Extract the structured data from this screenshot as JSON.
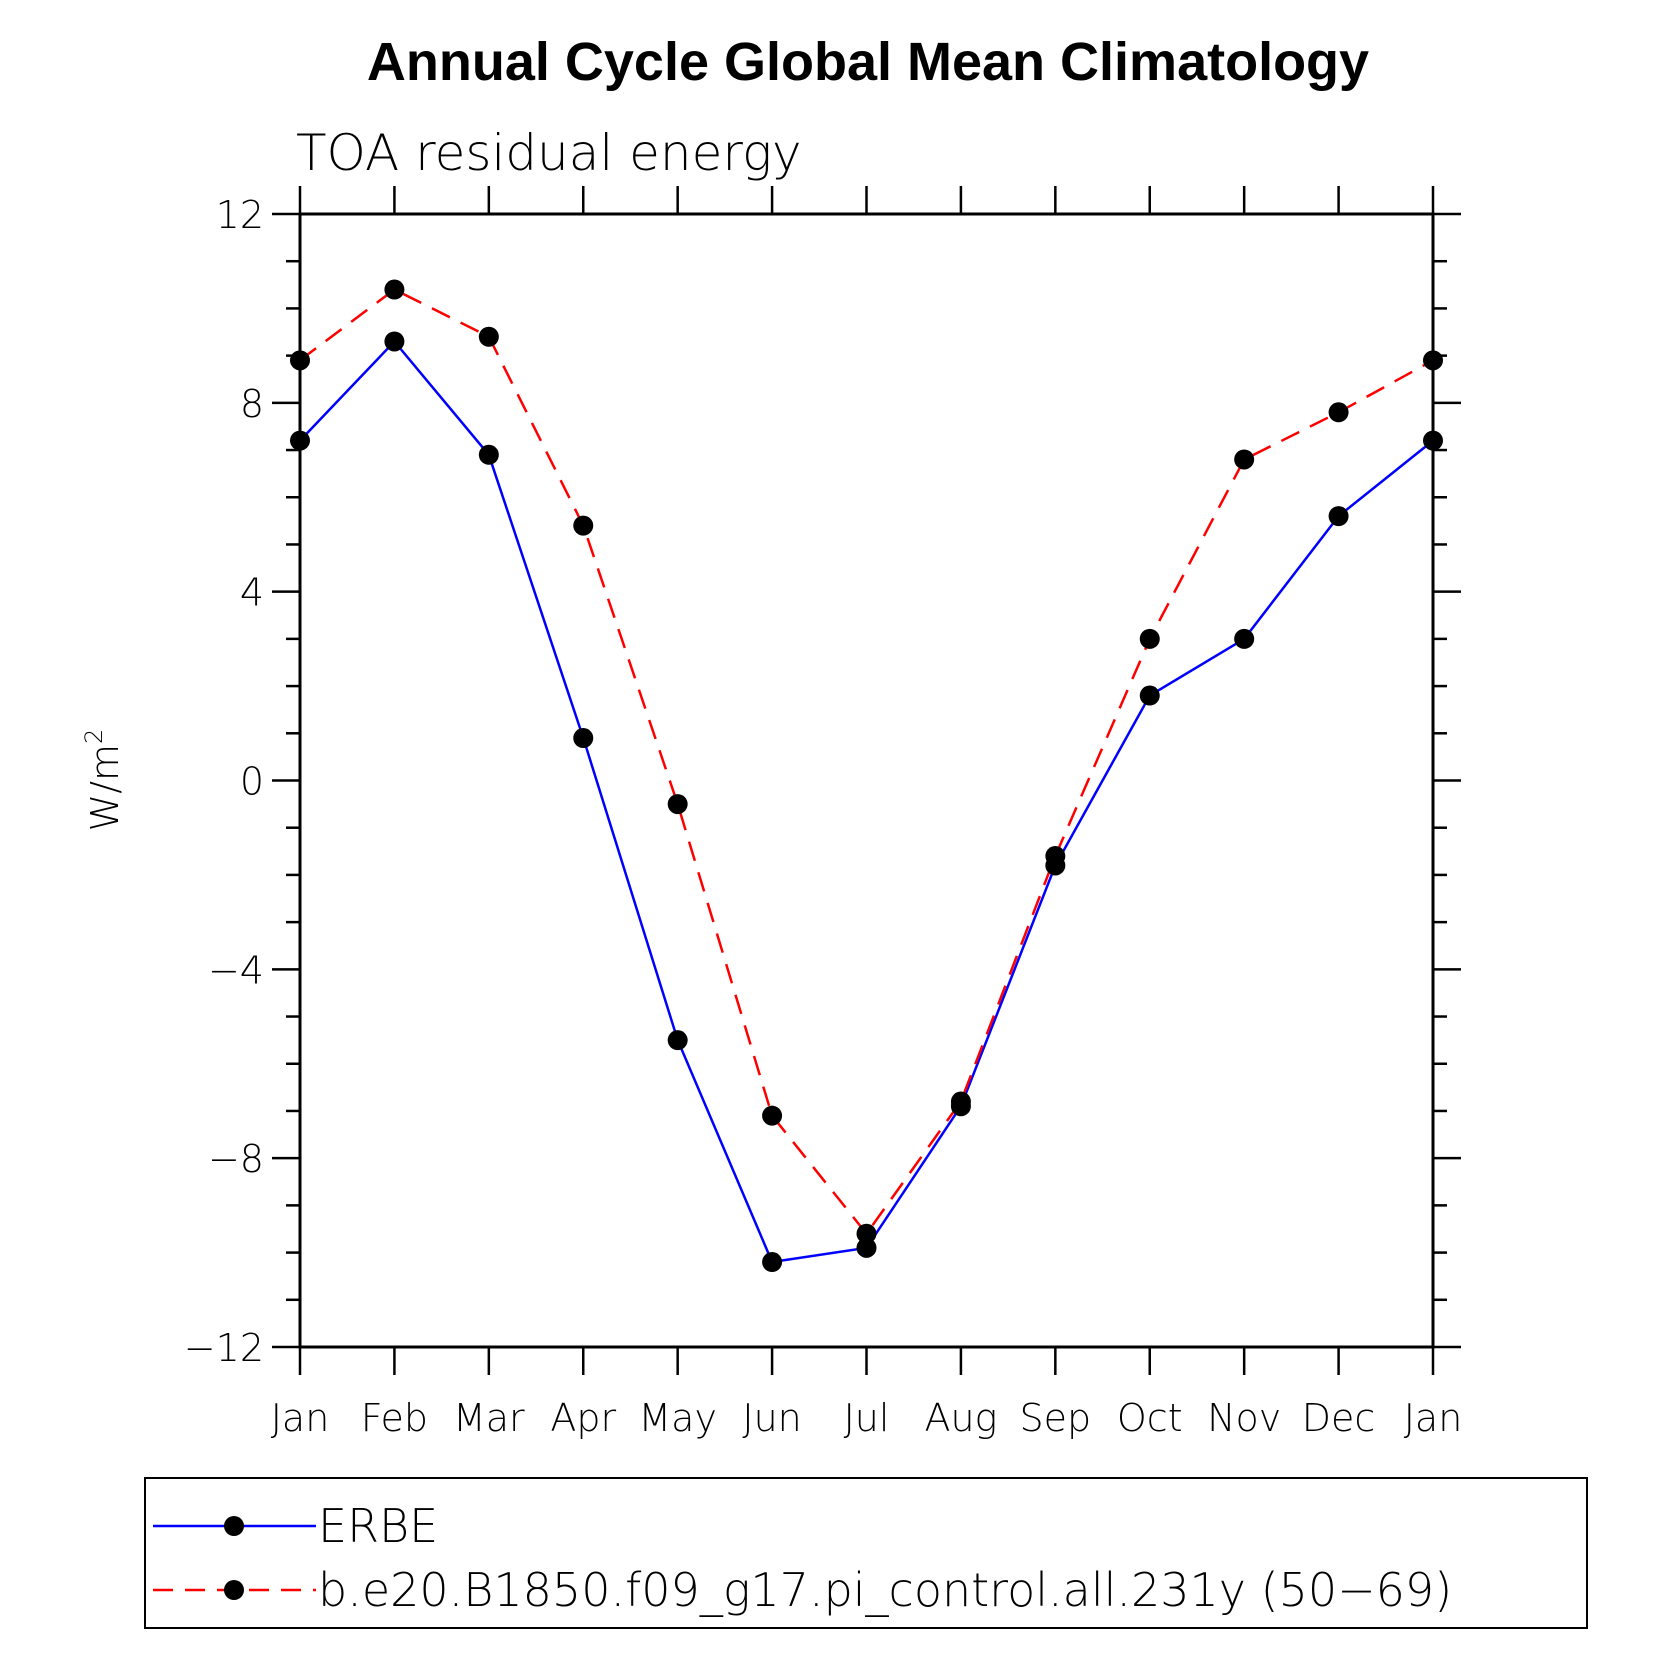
{
  "chart_data": {
    "type": "line",
    "title": "Annual Cycle Global Mean Climatology",
    "subtitle": "TOA residual energy",
    "ylabel_base": "W/m",
    "ylabel_sup": "2",
    "xlabel": "",
    "categories": [
      "Jan",
      "Feb",
      "Mar",
      "Apr",
      "May",
      "Jun",
      "Jul",
      "Aug",
      "Sep",
      "Oct",
      "Nov",
      "Dec",
      "Jan"
    ],
    "ylim": [
      -12,
      12
    ],
    "yticks": [
      -12,
      -8,
      -4,
      0,
      4,
      8,
      12
    ],
    "ytick_labels": [
      "−12",
      "−8",
      "−4",
      "0",
      "4",
      "8",
      "12"
    ],
    "series": [
      {
        "name": "ERBE",
        "color": "#0000ff",
        "style": "solid",
        "values": [
          7.2,
          9.3,
          6.9,
          0.9,
          -5.5,
          -10.2,
          -9.9,
          -6.9,
          -1.8,
          1.8,
          3.0,
          5.6,
          7.2
        ]
      },
      {
        "name": "b.e20.B1850.f09_g17.pi_control.all.231y (50−69)",
        "color": "#ff0000",
        "style": "dashed",
        "values": [
          8.9,
          10.4,
          9.4,
          5.4,
          -0.5,
          -7.1,
          -9.6,
          -6.8,
          -1.6,
          3.0,
          6.8,
          7.8,
          8.9
        ]
      }
    ],
    "marker_color": "#000000",
    "grid": false,
    "legend_position": "bottom"
  }
}
